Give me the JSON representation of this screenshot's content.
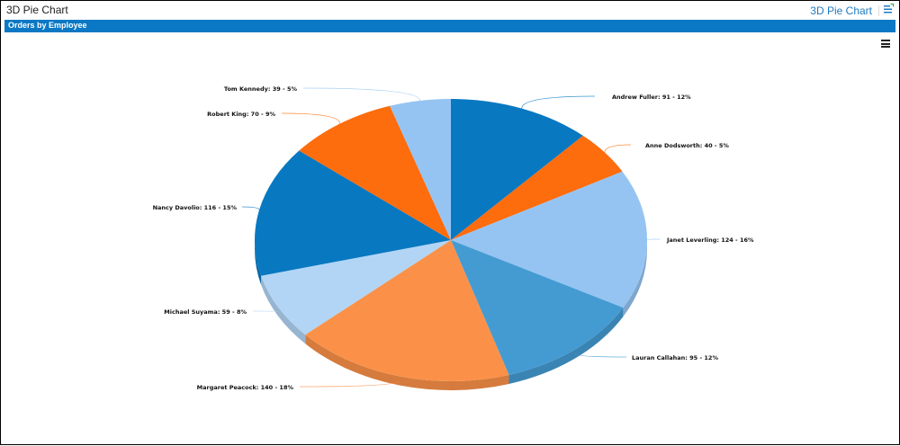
{
  "header": {
    "app_title": "3D Pie Chart",
    "link_label": "3D Pie Chart",
    "export_icon": "export-list-icon"
  },
  "panel": {
    "title": "Orders by Employee",
    "menu_icon": "hamburger-menu-icon",
    "accent_color": "#0a78c4"
  },
  "chart_data": {
    "type": "pie",
    "variant": "3d",
    "title": "Orders by Employee",
    "categories": [
      "Andrew Fuller",
      "Anne Dodsworth",
      "Janet Leverling",
      "Lauran Callahan",
      "Margaret Peacock",
      "Michael Suyama",
      "Nancy Davolio",
      "Robert King",
      "Tom Kennedy"
    ],
    "values": [
      91,
      40,
      124,
      95,
      140,
      59,
      116,
      70,
      39
    ],
    "percents": [
      12,
      5,
      16,
      12,
      18,
      8,
      15,
      9,
      5
    ],
    "colors": [
      "#0878c1",
      "#fd6c0d",
      "#95c4f2",
      "#449bd2",
      "#fb9148",
      "#b2d5f5",
      "#0878c1",
      "#fd6c0d",
      "#95c4f2"
    ],
    "labels": [
      "Andrew Fuller: 91 - 12%",
      "Anne Dodsworth: 40 - 5%",
      "Janet Leverling: 124 - 16%",
      "Lauran Callahan: 95 - 12%",
      "Margaret Peacock: 140 - 18%",
      "Michael Suyama: 59 - 8%",
      "Nancy Davolio: 116 - 15%",
      "Robert King: 70 - 9%",
      "Tom Kennedy: 39 - 5%"
    ],
    "legend": "none",
    "start_angle": "top, clockwise"
  }
}
